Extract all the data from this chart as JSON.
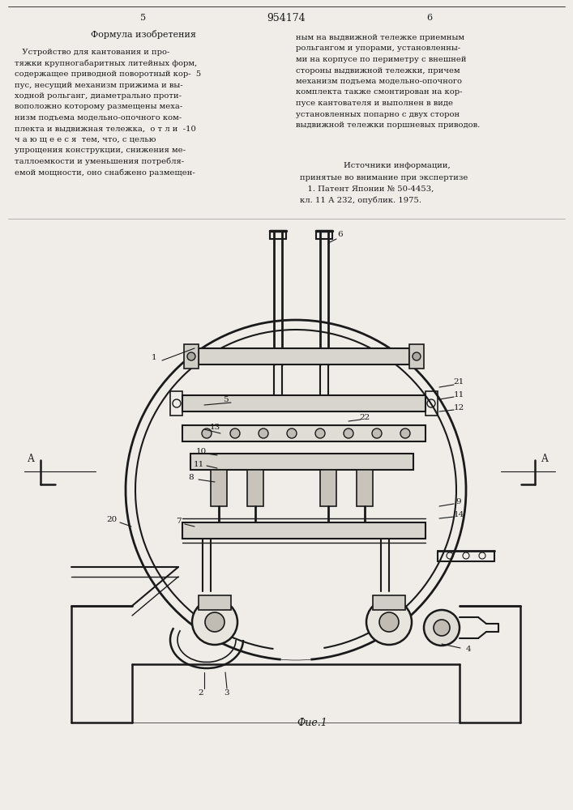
{
  "page_width": 7.07,
  "page_height": 10.0,
  "bg_color": "#f0ede8",
  "line_color": "#1a1a1a",
  "text_color": "#1a1a1a",
  "page_number_left": "5",
  "page_number_center": "954174",
  "page_number_right": "6",
  "left_heading": "Формула изобретения",
  "left_text_lines": [
    "   Устройство для кантования и про-",
    "тяжки крупногабаритных литейных форм,",
    "содержащее приводной поворотный кор-",
    "пус, несущий механизм прижима и вы-",
    "ходной рольганг, диаметрально проти-",
    "воположно которому размещены меха-",
    "низм подъема модельно-опочного ком-",
    "плекта и выдвижная тележка,  о т л и",
    "ч а ю щ е е с я  тем, что, с целью",
    "упрощения конструкции, снижения ме-",
    "таллоемкости и уменьшения потребля-",
    "емой мощности, оно снабжено размещен-"
  ],
  "right_text_lines": [
    "ным на выдвижной тележке приемным",
    "рольгангом и упорами, установленны-",
    "ми на корпусе по периметру с внешней",
    "стороны выдвижной тележки, причем",
    "механизм подъема модельно-опочного",
    "комплекта также смонтирован на кор-",
    "пусе кантователя и выполнен в виде",
    "установленных попарно с двух сторон",
    "выдвижной тележки поршневых приводов."
  ],
  "sources_heading": "Источники информации,",
  "sources_lines": [
    "принятые во внимание при экспертизе",
    "   1. Патент Японии № 50-4453,",
    "кл. 11 А 232, опублик. 1975."
  ],
  "fig_caption": "Фие.1",
  "left_num5": "5",
  "right_num6": "6",
  "right_margin_5": "5",
  "right_margin_10": "-10"
}
